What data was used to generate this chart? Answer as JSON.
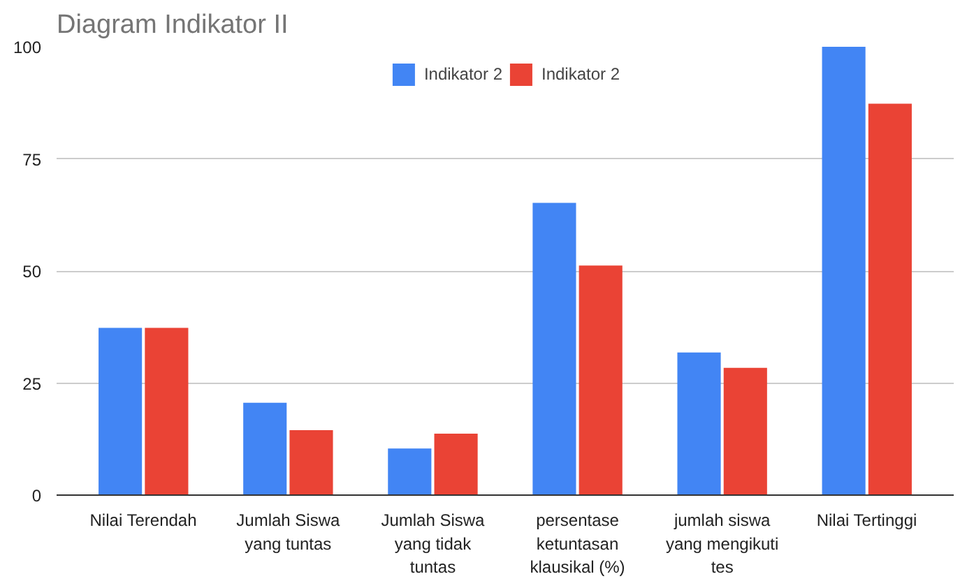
{
  "chart_data": {
    "type": "bar",
    "title": "Diagram Indikator II",
    "categories": [
      "Nilai Terendah",
      "Jumlah Siswa yang tuntas",
      "Jumlah Siswa yang tidak tuntas",
      "persentase ketuntasan klausikal (%)",
      "jumlah siswa yang mengikuti tes",
      "Nilai Tertinggi"
    ],
    "series": [
      {
        "name": "Indikator 2",
        "color": "#4285f4",
        "values": [
          37.3,
          20.6,
          10.4,
          65.2,
          31.8,
          100
        ]
      },
      {
        "name": "Indikator 2",
        "color": "#ea4335",
        "values": [
          37.3,
          14.5,
          13.7,
          51.2,
          28.4,
          87.3
        ]
      }
    ],
    "ylim": [
      0,
      100
    ],
    "yticks": [
      0,
      25,
      50,
      75,
      100
    ],
    "grid": "y",
    "legend": "top"
  }
}
